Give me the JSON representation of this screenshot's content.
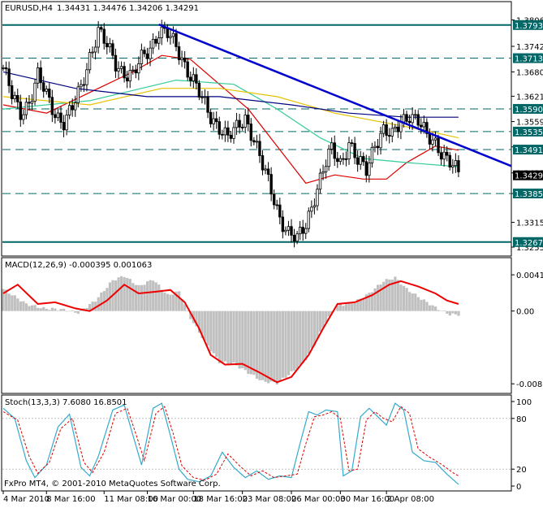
{
  "header": {
    "symbol": "EURUSD,H4",
    "ohlc": "1.34431 1.34476 1.34206 1.34291"
  },
  "copyright": "FxPro MT4, © 2001-2010 MetaQuotes Software Corp.",
  "colors": {
    "background": "#ffffff",
    "candles": "#000000",
    "trendline": "#0000cc",
    "levels": "#006666",
    "ma_fast": "#dd0000",
    "ma_mid": "#33cc99",
    "ma_slow": "#e6c200",
    "ma_long": "#000080",
    "histogram": "#c0c0c0",
    "signal": "#ee0000",
    "stoch_main": "#33aacc",
    "stoch_signal": "#dd0000",
    "label_bg": "#006666",
    "label_fg": "#ffffff"
  },
  "chart_data": [
    {
      "type": "candlestick",
      "series_name": "EURUSD,H4",
      "price_ticks": [
        "1.38060",
        "1.37420",
        "1.36800",
        "1.36210",
        "1.35595",
        "1.34980",
        "1.34350",
        "1.33850",
        "1.33150",
        "1.32550"
      ],
      "ylim": [
        1.3255,
        1.3811
      ],
      "level_lines": [
        {
          "label": "1.37937",
          "value": 1.37937,
          "style": "solid"
        },
        {
          "label": "1.37133",
          "value": 1.37133,
          "style": "dashed"
        },
        {
          "label": "1.35903",
          "value": 1.35903,
          "style": "dashed"
        },
        {
          "label": "1.35352",
          "value": 1.35352,
          "style": "dashed"
        },
        {
          "label": "1.34915",
          "value": 1.34915,
          "style": "dashed"
        },
        {
          "label": "1.33850",
          "value": 1.3385,
          "style": "dashed"
        },
        {
          "label": "1.32673",
          "value": 1.32673,
          "style": "solid"
        }
      ],
      "current_price": {
        "label": "1.34291",
        "value": 1.34291
      },
      "trendline": {
        "from": [
          54,
          1.3795
        ],
        "to": [
          158,
          1.3503
        ]
      },
      "waypoints": [
        [
          0,
          1.369
        ],
        [
          3,
          1.362
        ],
        [
          6,
          1.358
        ],
        [
          9,
          1.361
        ],
        [
          12,
          1.367
        ],
        [
          15,
          1.362
        ],
        [
          18,
          1.358
        ],
        [
          21,
          1.356
        ],
        [
          24,
          1.359
        ],
        [
          27,
          1.364
        ],
        [
          30,
          1.372
        ],
        [
          33,
          1.378
        ],
        [
          36,
          1.374
        ],
        [
          39,
          1.37
        ],
        [
          42,
          1.368
        ],
        [
          45,
          1.367
        ],
        [
          48,
          1.371
        ],
        [
          51,
          1.374
        ],
        [
          54,
          1.378
        ],
        [
          57,
          1.377
        ],
        [
          60,
          1.374
        ],
        [
          63,
          1.37
        ],
        [
          66,
          1.366
        ],
        [
          69,
          1.361
        ],
        [
          72,
          1.357
        ],
        [
          75,
          1.355
        ],
        [
          78,
          1.352
        ],
        [
          81,
          1.354
        ],
        [
          84,
          1.357
        ],
        [
          87,
          1.352
        ],
        [
          90,
          1.345
        ],
        [
          93,
          1.339
        ],
        [
          96,
          1.333
        ],
        [
          99,
          1.329
        ],
        [
          102,
          1.327
        ],
        [
          105,
          1.331
        ],
        [
          108,
          1.338
        ],
        [
          111,
          1.344
        ],
        [
          114,
          1.349
        ],
        [
          117,
          1.346
        ],
        [
          120,
          1.351
        ],
        [
          123,
          1.346
        ],
        [
          126,
          1.344
        ],
        [
          129,
          1.351
        ],
        [
          132,
          1.354
        ],
        [
          135,
          1.352
        ],
        [
          138,
          1.356
        ],
        [
          141,
          1.358
        ],
        [
          144,
          1.356
        ],
        [
          147,
          1.352
        ],
        [
          150,
          1.351
        ],
        [
          153,
          1.348
        ],
        [
          156,
          1.345
        ],
        [
          158,
          1.343
        ]
      ],
      "moving_averages": [
        {
          "color": "#dd0000",
          "points": [
            [
              0,
              1.36
            ],
            [
              15,
              1.358
            ],
            [
              30,
              1.363
            ],
            [
              45,
              1.368
            ],
            [
              55,
              1.372
            ],
            [
              65,
              1.371
            ],
            [
              75,
              1.365
            ],
            [
              85,
              1.359
            ],
            [
              95,
              1.35
            ],
            [
              105,
              1.341
            ],
            [
              115,
              1.343
            ],
            [
              125,
              1.342
            ],
            [
              133,
              1.342
            ],
            [
              140,
              1.346
            ],
            [
              150,
              1.35
            ],
            [
              158,
              1.349
            ]
          ]
        },
        {
          "color": "#33cc99",
          "points": [
            [
              0,
              1.359
            ],
            [
              30,
              1.361
            ],
            [
              60,
              1.366
            ],
            [
              80,
              1.365
            ],
            [
              95,
              1.359
            ],
            [
              110,
              1.352
            ],
            [
              125,
              1.347
            ],
            [
              140,
              1.346
            ],
            [
              158,
              1.345
            ]
          ]
        },
        {
          "color": "#e6c200",
          "points": [
            [
              0,
              1.362
            ],
            [
              30,
              1.36
            ],
            [
              55,
              1.364
            ],
            [
              75,
              1.364
            ],
            [
              95,
              1.362
            ],
            [
              115,
              1.358
            ],
            [
              130,
              1.356
            ],
            [
              145,
              1.354
            ],
            [
              158,
              1.352
            ]
          ]
        },
        {
          "color": "#000080",
          "points": [
            [
              0,
              1.368
            ],
            [
              25,
              1.364
            ],
            [
              50,
              1.362
            ],
            [
              75,
              1.362
            ],
            [
              100,
              1.36
            ],
            [
              120,
              1.358
            ],
            [
              140,
              1.357
            ],
            [
              158,
              1.357
            ]
          ]
        }
      ],
      "x_tick_labels": [
        {
          "bar": 0,
          "label": "4 Mar 2010"
        },
        {
          "bar": 15,
          "label": "8 Mar 16:00"
        },
        {
          "bar": 35,
          "label": "11 Mar 08:00"
        },
        {
          "bar": 50,
          "label": "16 Mar 00:00"
        },
        {
          "bar": 66,
          "label": "18 Mar 16:00"
        },
        {
          "bar": 83,
          "label": "23 Mar 08:00"
        },
        {
          "bar": 100,
          "label": "26 Mar 00:00"
        },
        {
          "bar": 117,
          "label": "30 Mar 16:00"
        },
        {
          "bar": 133,
          "label": "2 Apr 08:00"
        }
      ],
      "bar_count": 159
    },
    {
      "type": "macd",
      "title": "MACD(12,26,9) -0.000395 0.001063",
      "ticks": [
        "0.00412",
        "0.00",
        "-0.00828"
      ],
      "ylim": [
        -0.009,
        0.0045
      ],
      "histogram_waypoints": [
        [
          0,
          0.0025
        ],
        [
          8,
          0.0008
        ],
        [
          14,
          0.0003
        ],
        [
          20,
          0.0002
        ],
        [
          26,
          -0.0002
        ],
        [
          32,
          0.0012
        ],
        [
          38,
          0.0035
        ],
        [
          42,
          0.004
        ],
        [
          47,
          0.0028
        ],
        [
          52,
          0.0036
        ],
        [
          57,
          0.0018
        ],
        [
          61,
          0.0022
        ],
        [
          65,
          -0.0008
        ],
        [
          70,
          -0.0035
        ],
        [
          75,
          -0.0058
        ],
        [
          80,
          -0.006
        ],
        [
          85,
          -0.007
        ],
        [
          90,
          -0.008
        ],
        [
          95,
          -0.0082
        ],
        [
          100,
          -0.007
        ],
        [
          104,
          -0.006
        ],
        [
          108,
          -0.0038
        ],
        [
          112,
          -0.0012
        ],
        [
          116,
          0.0006
        ],
        [
          122,
          0.001
        ],
        [
          127,
          0.002
        ],
        [
          132,
          0.0034
        ],
        [
          136,
          0.0038
        ],
        [
          140,
          0.0025
        ],
        [
          145,
          0.0014
        ],
        [
          150,
          0.0004
        ],
        [
          155,
          -0.0004
        ],
        [
          158,
          -0.0004
        ]
      ],
      "signal_waypoints": [
        [
          0,
          0.002
        ],
        [
          5,
          0.003
        ],
        [
          12,
          0.0008
        ],
        [
          18,
          0.001
        ],
        [
          25,
          0.0003
        ],
        [
          30,
          0.0
        ],
        [
          36,
          0.0012
        ],
        [
          42,
          0.003
        ],
        [
          47,
          0.002
        ],
        [
          53,
          0.0022
        ],
        [
          58,
          0.0024
        ],
        [
          63,
          0.001
        ],
        [
          68,
          -0.002
        ],
        [
          72,
          -0.005
        ],
        [
          77,
          -0.0061
        ],
        [
          83,
          -0.006
        ],
        [
          89,
          -0.007
        ],
        [
          95,
          -0.0081
        ],
        [
          100,
          -0.0075
        ],
        [
          106,
          -0.005
        ],
        [
          111,
          -0.002
        ],
        [
          116,
          0.0008
        ],
        [
          122,
          0.001
        ],
        [
          128,
          0.0018
        ],
        [
          134,
          0.003
        ],
        [
          138,
          0.0034
        ],
        [
          144,
          0.0028
        ],
        [
          150,
          0.002
        ],
        [
          154,
          0.0012
        ],
        [
          158,
          0.0008
        ]
      ]
    },
    {
      "type": "stochastic",
      "title": "Stoch(13,3,3) 7.6080 16.8501",
      "ticks": [
        "100",
        "80",
        "20",
        "0"
      ],
      "levels": [
        80,
        20
      ],
      "ylim": [
        0,
        100
      ],
      "main_waypoints": [
        [
          0,
          92
        ],
        [
          4,
          80
        ],
        [
          8,
          30
        ],
        [
          11,
          10
        ],
        [
          15,
          25
        ],
        [
          19,
          70
        ],
        [
          23,
          85
        ],
        [
          27,
          22
        ],
        [
          30,
          12
        ],
        [
          33,
          35
        ],
        [
          38,
          90
        ],
        [
          42,
          96
        ],
        [
          45,
          60
        ],
        [
          48,
          25
        ],
        [
          52,
          92
        ],
        [
          55,
          98
        ],
        [
          58,
          60
        ],
        [
          61,
          20
        ],
        [
          64,
          8
        ],
        [
          68,
          5
        ],
        [
          72,
          12
        ],
        [
          76,
          40
        ],
        [
          80,
          22
        ],
        [
          84,
          10
        ],
        [
          88,
          18
        ],
        [
          92,
          8
        ],
        [
          96,
          12
        ],
        [
          100,
          10
        ],
        [
          103,
          50
        ],
        [
          106,
          88
        ],
        [
          109,
          84
        ],
        [
          112,
          90
        ],
        [
          116,
          88
        ],
        [
          118,
          12
        ],
        [
          121,
          18
        ],
        [
          124,
          82
        ],
        [
          127,
          92
        ],
        [
          130,
          82
        ],
        [
          133,
          72
        ],
        [
          136,
          98
        ],
        [
          139,
          90
        ],
        [
          142,
          40
        ],
        [
          146,
          30
        ],
        [
          150,
          28
        ],
        [
          154,
          14
        ],
        [
          158,
          2
        ]
      ],
      "signal_waypoints": [
        [
          0,
          88
        ],
        [
          5,
          78
        ],
        [
          9,
          35
        ],
        [
          12,
          15
        ],
        [
          16,
          28
        ],
        [
          20,
          68
        ],
        [
          24,
          80
        ],
        [
          28,
          28
        ],
        [
          31,
          16
        ],
        [
          35,
          40
        ],
        [
          39,
          86
        ],
        [
          43,
          92
        ],
        [
          46,
          62
        ],
        [
          49,
          30
        ],
        [
          53,
          86
        ],
        [
          56,
          94
        ],
        [
          59,
          62
        ],
        [
          62,
          24
        ],
        [
          66,
          10
        ],
        [
          70,
          7
        ],
        [
          74,
          14
        ],
        [
          78,
          38
        ],
        [
          82,
          24
        ],
        [
          86,
          12
        ],
        [
          90,
          18
        ],
        [
          94,
          10
        ],
        [
          98,
          12
        ],
        [
          102,
          14
        ],
        [
          105,
          50
        ],
        [
          108,
          82
        ],
        [
          111,
          84
        ],
        [
          114,
          88
        ],
        [
          117,
          80
        ],
        [
          120,
          18
        ],
        [
          123,
          20
        ],
        [
          126,
          78
        ],
        [
          129,
          88
        ],
        [
          132,
          80
        ],
        [
          135,
          76
        ],
        [
          138,
          94
        ],
        [
          141,
          86
        ],
        [
          144,
          44
        ],
        [
          148,
          34
        ],
        [
          152,
          26
        ],
        [
          156,
          16
        ],
        [
          158,
          12
        ]
      ]
    }
  ]
}
